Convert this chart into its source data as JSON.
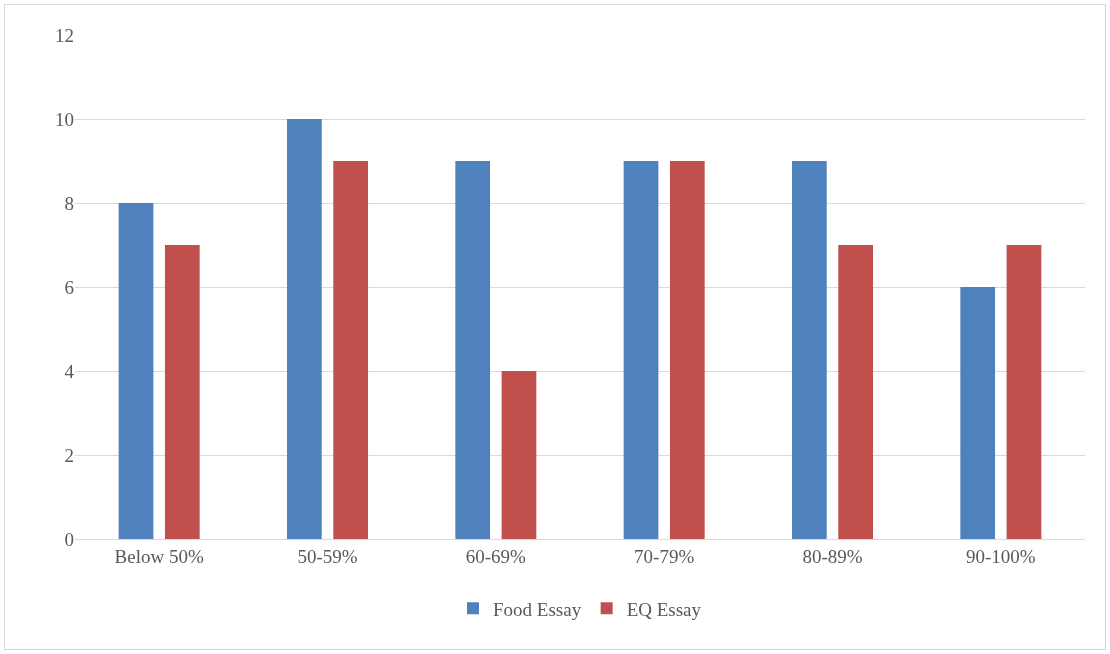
{
  "chart_data": {
    "type": "bar",
    "categories": [
      "Below 50%",
      "50-59%",
      "60-69%",
      "70-79%",
      "80-89%",
      "90-100%"
    ],
    "series": [
      {
        "name": "Food Essay",
        "color": "#4f81bd",
        "values": [
          8,
          10,
          9,
          9,
          9,
          6
        ]
      },
      {
        "name": "EQ Essay",
        "color": "#c0504d",
        "values": [
          7,
          9,
          4,
          9,
          7,
          7
        ]
      }
    ],
    "ylim": [
      0,
      12
    ],
    "yticks": [
      0,
      2,
      4,
      6,
      8,
      10,
      12
    ],
    "grid": "y",
    "legend": "bottom"
  }
}
